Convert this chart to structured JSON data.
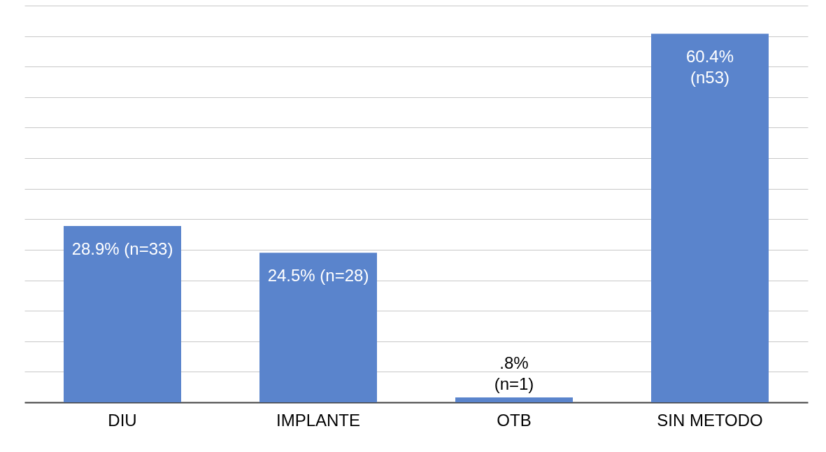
{
  "chart_data": {
    "type": "bar",
    "categories": [
      "DIU",
      "IMPLANTE",
      "OTB",
      "SIN METODO"
    ],
    "values": [
      28.9,
      24.5,
      0.8,
      60.4
    ],
    "color": "#5a84cc",
    "value_labels": [
      "28.9% (n=33)",
      "24.5% (n=28)",
      ".8%\n(n=1)",
      "60.4%\n(n53)"
    ],
    "grid": "y"
  }
}
